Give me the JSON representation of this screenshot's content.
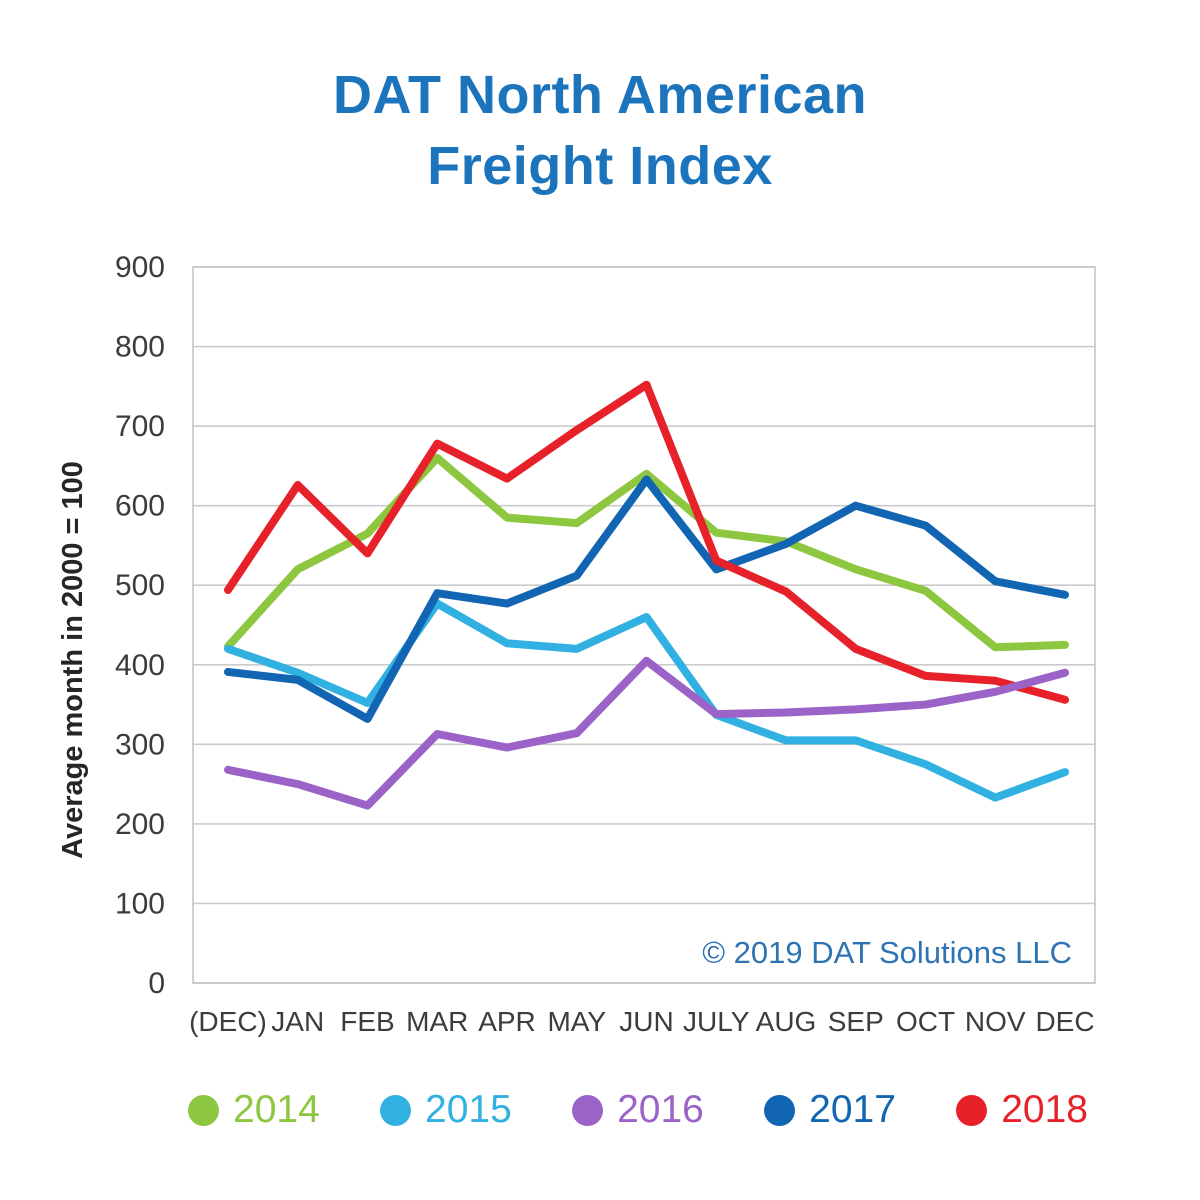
{
  "title": {
    "line1": "DAT North American",
    "line2": "Freight Index"
  },
  "chart_data": {
    "type": "line",
    "title": "DAT North American Freight Index",
    "xlabel": "",
    "ylabel": "Average month in 2000 = 100",
    "ylim": [
      0,
      900
    ],
    "ytick_step": 100,
    "grid": true,
    "legend_position": "bottom",
    "categories": [
      "(DEC)",
      "JAN",
      "FEB",
      "MAR",
      "APR",
      "MAY",
      "JUN",
      "JULY",
      "AUG",
      "SEP",
      "OCT",
      "NOV",
      "DEC"
    ],
    "series": [
      {
        "name": "2014",
        "color": "#8DC63F",
        "values": [
          423,
          520,
          565,
          660,
          585,
          578,
          640,
          566,
          555,
          520,
          493,
          422,
          425
        ]
      },
      {
        "name": "2015",
        "color": "#31B0E2",
        "values": [
          420,
          390,
          352,
          477,
          427,
          420,
          460,
          337,
          305,
          305,
          275,
          233,
          265
        ]
      },
      {
        "name": "2016",
        "color": "#9B63C8",
        "values": [
          268,
          250,
          223,
          313,
          296,
          314,
          405,
          338,
          340,
          344,
          350,
          366,
          390
        ]
      },
      {
        "name": "2017",
        "color": "#1165B2",
        "values": [
          391,
          381,
          332,
          490,
          477,
          512,
          633,
          520,
          552,
          600,
          575,
          505,
          488
        ]
      },
      {
        "name": "2018",
        "color": "#E7212A",
        "values": [
          494,
          626,
          540,
          678,
          634,
          695,
          752,
          531,
          492,
          420,
          386,
          380,
          356
        ]
      }
    ],
    "copyright": "© 2019 DAT Solutions LLC"
  },
  "colors": {
    "title": "#1C75BC",
    "copyright": "#2E74B5",
    "grid": "#CBCBCB",
    "plot_border": "#C4C4C4",
    "axis_text": "#3C3C3C",
    "axis_title_text": "#262626"
  }
}
